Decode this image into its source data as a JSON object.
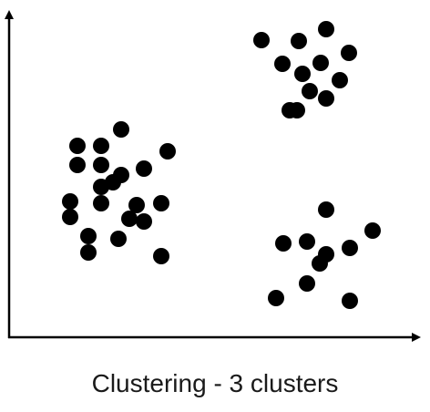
{
  "chart_data": {
    "type": "scatter",
    "title": "Clustering - 3 clusters",
    "xlabel": "",
    "ylabel": "",
    "xlim": [
      0,
      460
    ],
    "ylim": [
      0,
      370
    ],
    "grid": false,
    "ticks": false,
    "legend": "none",
    "point_color": "#000000",
    "axis_color": "#000000",
    "series": [
      {
        "x": [
          277,
          318,
          348,
          300,
          322,
          342,
          373,
          330,
          348,
          363,
          316,
          308,
          123,
          75,
          101,
          174,
          75,
          101,
          148,
          123,
          101,
          114,
          67,
          101,
          140,
          167,
          67,
          132,
          148,
          87,
          120,
          87,
          167
        ],
        "y": [
          326,
          325,
          338,
          300,
          289,
          301,
          312,
          270,
          262,
          282,
          249,
          249,
          228,
          210,
          210,
          204,
          189,
          189,
          185,
          178,
          165,
          170,
          149,
          147,
          145,
          147,
          132,
          130,
          127,
          111,
          108,
          93,
          89
        ]
      },
      {
        "x": [
          348,
          399,
          301,
          327,
          374,
          348,
          341,
          327,
          293,
          374
        ],
        "y": [
          140,
          117,
          103,
          105,
          98,
          91,
          81,
          59,
          43,
          40
        ]
      }
    ]
  }
}
